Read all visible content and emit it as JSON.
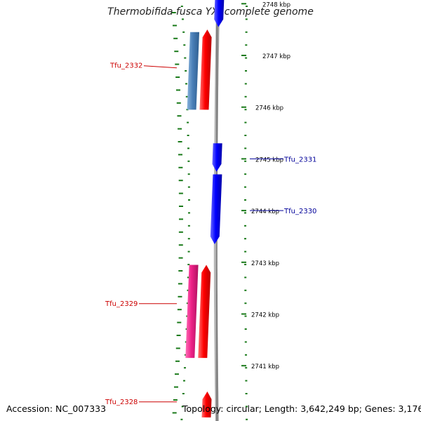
{
  "title": "Thermobifida fusca YX, complete genome",
  "accession": "Accession: NC_007333",
  "topology": "Topology: circular; Length: 3,642,249 bp; Genes: 3,176",
  "colors": {
    "backbone": "#888888",
    "ticks": "#1a7a1a",
    "forward_cds": "#ff0000",
    "reverse_cds": "#0000ff",
    "forward_label": "#cc0000",
    "reverse_label": "#000099",
    "steelblue_feature": "#4a80b8",
    "pink_feature": "#ee2288"
  },
  "ruler": {
    "unit": "kbp",
    "labels": [
      {
        "kbp": 2748,
        "text": "2748 kbp"
      },
      {
        "kbp": 2747,
        "text": "2747 kbp"
      },
      {
        "kbp": 2746,
        "text": "2746 kbp"
      },
      {
        "kbp": 2745,
        "text": "2745 kbp"
      },
      {
        "kbp": 2744,
        "text": "2744 kbp"
      },
      {
        "kbp": 2743,
        "text": "2743 kbp"
      },
      {
        "kbp": 2742,
        "text": "2742 kbp"
      },
      {
        "kbp": 2741,
        "text": "2741 kbp"
      }
    ]
  },
  "features": [
    {
      "label": "",
      "strand": "reverse",
      "start_kbp": 2747.55,
      "end_kbp": 2748.1,
      "color": "reverse_cds"
    },
    {
      "label": "Tfu_2332",
      "strand": "forward",
      "start_kbp": 2745.95,
      "end_kbp": 2747.5,
      "color": "forward_cds",
      "label_kbp": 2746.8
    },
    {
      "label": "",
      "strand": "forward",
      "start_kbp": 2745.95,
      "end_kbp": 2747.45,
      "color": "steelblue_feature"
    },
    {
      "label": "Tfu_2331",
      "strand": "reverse",
      "start_kbp": 2744.75,
      "end_kbp": 2745.3,
      "color": "reverse_cds",
      "label_kbp": 2745.0
    },
    {
      "label": "Tfu_2330",
      "strand": "reverse",
      "start_kbp": 2743.35,
      "end_kbp": 2744.7,
      "color": "reverse_cds",
      "label_kbp": 2744.0
    },
    {
      "label": "Tfu_2329",
      "strand": "forward",
      "start_kbp": 2741.15,
      "end_kbp": 2742.95,
      "color": "forward_cds",
      "label_kbp": 2742.2
    },
    {
      "label": "",
      "strand": "forward",
      "start_kbp": 2741.15,
      "end_kbp": 2742.95,
      "color": "pink_feature"
    },
    {
      "label": "Tfu_2328",
      "strand": "forward",
      "start_kbp": 2740.0,
      "end_kbp": 2740.5,
      "color": "forward_cds",
      "label_kbp": 2740.3
    }
  ]
}
